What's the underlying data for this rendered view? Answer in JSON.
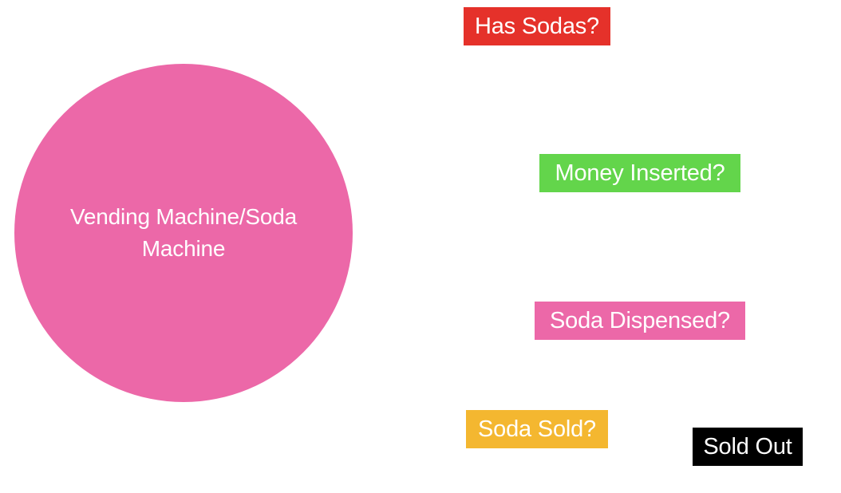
{
  "diagram": {
    "main_node": {
      "label": "Vending Machine/Soda Machine",
      "color": "#ec68a8"
    },
    "states": [
      {
        "label": "Has Sodas?",
        "color": "#e5312a"
      },
      {
        "label": "Money Inserted?",
        "color": "#63d54b"
      },
      {
        "label": "Soda Dispensed?",
        "color": "#ec68a8"
      },
      {
        "label": "Soda Sold?",
        "color": "#f4b730"
      },
      {
        "label": "Sold Out",
        "color": "#000000"
      }
    ]
  }
}
